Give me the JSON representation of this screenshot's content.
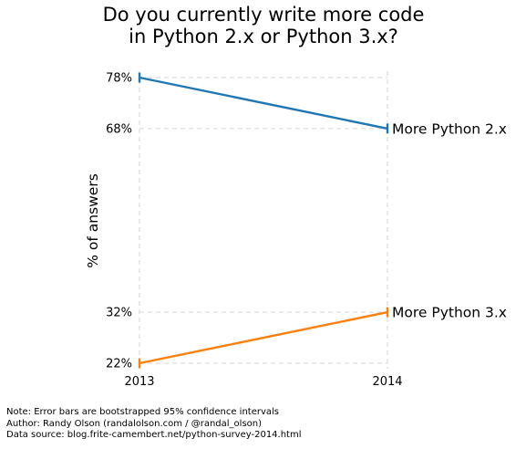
{
  "chart_data": {
    "type": "line",
    "title": "Do you currently write more code in Python 2.x or Python 3.x?",
    "title_lines": [
      "Do you currently write more code",
      "in Python 2.x or Python 3.x?"
    ],
    "ylabel": "% of answers",
    "xlabel": "",
    "x": [
      "2013",
      "2014"
    ],
    "ylim": [
      22,
      78
    ],
    "yticks": [
      {
        "value": 22,
        "label": "22%"
      },
      {
        "value": 32,
        "label": "32%"
      },
      {
        "value": 68,
        "label": "68%"
      },
      {
        "value": 78,
        "label": "78%"
      }
    ],
    "grid": "dashed light gray, at y tick values and x tick values",
    "error_bars": "95% bootstrapped confidence intervals (small vertical bars)",
    "series": [
      {
        "name": "More Python 2.x",
        "color": "#1f77b4",
        "values": [
          78,
          68
        ],
        "error": [
          0.8,
          0.8
        ]
      },
      {
        "name": "More Python 3.x",
        "color": "#ff7f0e",
        "values": [
          22,
          32
        ],
        "error": [
          0.8,
          0.8
        ]
      }
    ]
  },
  "notes": [
    "Note: Error bars are bootstrapped 95% confidence intervals",
    "Author: Randy Olson (randalolson.com / @randal_olson)",
    "Data source: blog.frite-camembert.net/python-survey-2014.html"
  ]
}
